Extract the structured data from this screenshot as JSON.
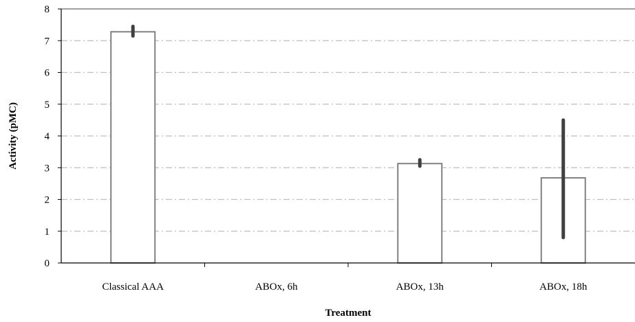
{
  "chart_data": {
    "type": "bar",
    "title": "",
    "xlabel": "Treatment",
    "ylabel": "Activity  (pMC)",
    "categories": [
      "Classical AAA",
      "ABOx, 6h",
      "ABOx, 13h",
      "ABOx, 18h"
    ],
    "values": [
      7.28,
      null,
      3.13,
      2.68
    ],
    "error_low": [
      7.15,
      null,
      3.05,
      0.8
    ],
    "error_high": [
      7.45,
      null,
      3.25,
      4.5
    ],
    "ylim": [
      0,
      8
    ],
    "yticks": [
      0,
      1,
      2,
      3,
      4,
      5,
      6,
      7,
      8
    ],
    "grid": "horizontal dash-dot",
    "legend": "none",
    "colors": {
      "bar_fill": "#ffffff",
      "bar_stroke": "#808080",
      "error_bar": "#404040",
      "grid": "#bfbfbf",
      "axis": "#808080"
    }
  }
}
